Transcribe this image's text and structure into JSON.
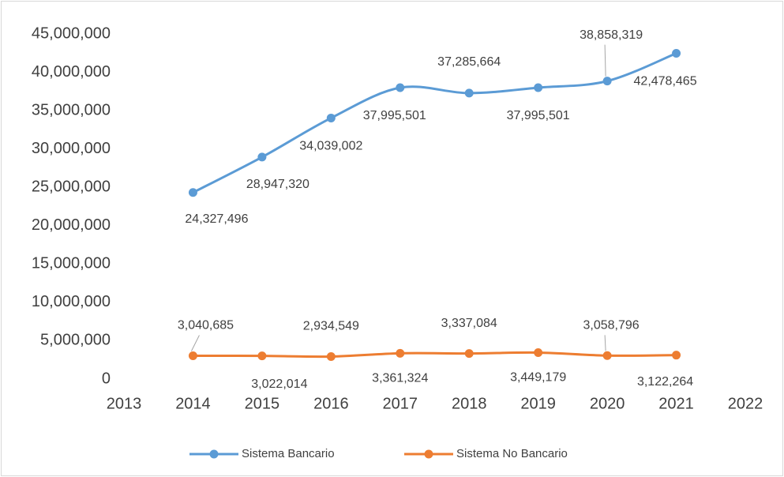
{
  "chart_data": {
    "type": "line",
    "x": [
      2014,
      2015,
      2016,
      2017,
      2018,
      2019,
      2020,
      2021
    ],
    "series": [
      {
        "name": "Sistema Bancario",
        "color": "#5b9bd5",
        "values": [
          24327496,
          28947320,
          34039002,
          37995501,
          37285664,
          37995501,
          38858319,
          42478465
        ],
        "value_labels": [
          "24,327,496",
          "28,947,320",
          "34,039,002",
          "37,995,501",
          "37,285,664",
          "37,995,501",
          "38,858,319",
          "42,478,465"
        ]
      },
      {
        "name": "Sistema No Bancario",
        "color": "#ed7d31",
        "values": [
          3040685,
          3022014,
          2934549,
          3361324,
          3337084,
          3449179,
          3058796,
          3122264
        ],
        "value_labels": [
          "3,040,685",
          "3,022,014",
          "2,934,549",
          "3,361,324",
          "3,337,084",
          "3,449,179",
          "3,058,796",
          "3,122,264"
        ]
      }
    ],
    "xlim": [
      2013,
      2022
    ],
    "xticks": [
      2013,
      2014,
      2015,
      2016,
      2017,
      2018,
      2019,
      2020,
      2021,
      2022
    ],
    "ylim": [
      0,
      45000000
    ],
    "yticks": [
      0,
      {
        "value": 5000000,
        "label": "5,000,000"
      },
      {
        "value": 10000000,
        "label": "10,000,000"
      },
      {
        "value": 15000000,
        "label": "15,000,000"
      },
      {
        "value": 20000000,
        "label": "20,000,000"
      },
      {
        "value": 25000000,
        "label": "25,000,000"
      },
      {
        "value": 30000000,
        "label": "30,000,000"
      },
      {
        "value": 35000000,
        "label": "35,000,000"
      },
      {
        "value": 40000000,
        "label": "40,000,000"
      },
      {
        "value": 45000000,
        "label": "45,000,000"
      }
    ],
    "legend": "bottom"
  }
}
